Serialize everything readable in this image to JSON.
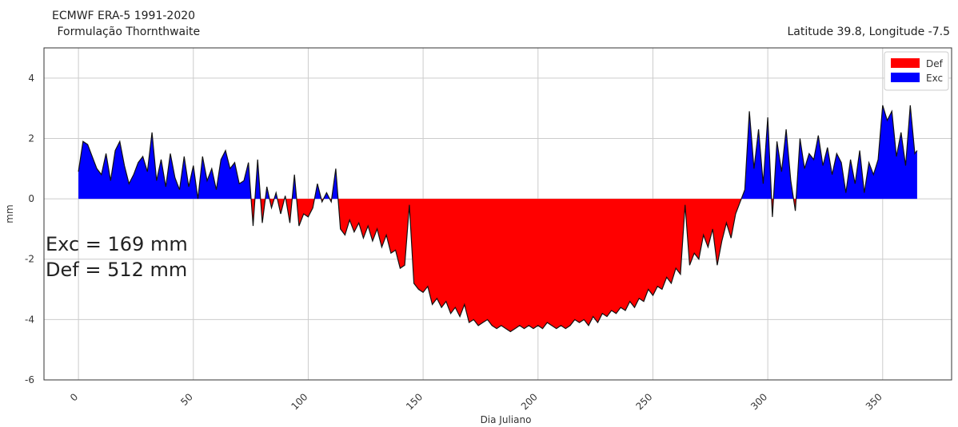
{
  "chart_data": {
    "type": "area",
    "title_line1": "ECMWF ERA-5 1991-2020",
    "title_line2": " Formulação Thornthwaite",
    "title_right": "Latitude 39.8, Longitude -7.5",
    "xlabel": "Dia Juliano",
    "ylabel": "mm",
    "xlim": [
      -15,
      380
    ],
    "ylim": [
      -6,
      5
    ],
    "xticks": [
      0,
      50,
      100,
      150,
      200,
      250,
      300,
      350
    ],
    "yticks": [
      -6,
      -4,
      -2,
      0,
      2,
      4
    ],
    "grid": true,
    "legend_position": "top-right",
    "annotations": [
      "Exc = 169 mm",
      "Def = 512 mm"
    ],
    "series": [
      {
        "name": "Def",
        "color": "#ff0000",
        "sign": "negative"
      },
      {
        "name": "Exc",
        "color": "#0000ff",
        "sign": "positive"
      }
    ],
    "points": [
      [
        0,
        0.9
      ],
      [
        2,
        1.9
      ],
      [
        4,
        1.8
      ],
      [
        6,
        1.4
      ],
      [
        8,
        1.0
      ],
      [
        10,
        0.8
      ],
      [
        12,
        1.5
      ],
      [
        14,
        0.6
      ],
      [
        16,
        1.6
      ],
      [
        18,
        1.9
      ],
      [
        20,
        1.1
      ],
      [
        22,
        0.5
      ],
      [
        24,
        0.8
      ],
      [
        26,
        1.2
      ],
      [
        28,
        1.4
      ],
      [
        30,
        0.9
      ],
      [
        32,
        2.2
      ],
      [
        34,
        0.6
      ],
      [
        36,
        1.3
      ],
      [
        38,
        0.4
      ],
      [
        40,
        1.5
      ],
      [
        42,
        0.7
      ],
      [
        44,
        0.3
      ],
      [
        46,
        1.4
      ],
      [
        48,
        0.4
      ],
      [
        50,
        1.1
      ],
      [
        52,
        0.0
      ],
      [
        54,
        1.4
      ],
      [
        56,
        0.6
      ],
      [
        58,
        1.0
      ],
      [
        60,
        0.3
      ],
      [
        62,
        1.3
      ],
      [
        64,
        1.6
      ],
      [
        66,
        1.0
      ],
      [
        68,
        1.2
      ],
      [
        70,
        0.5
      ],
      [
        72,
        0.6
      ],
      [
        74,
        1.2
      ],
      [
        76,
        -0.9
      ],
      [
        78,
        1.3
      ],
      [
        80,
        -0.8
      ],
      [
        82,
        0.4
      ],
      [
        84,
        -0.3
      ],
      [
        86,
        0.2
      ],
      [
        88,
        -0.5
      ],
      [
        90,
        0.1
      ],
      [
        92,
        -0.8
      ],
      [
        94,
        0.8
      ],
      [
        96,
        -0.9
      ],
      [
        98,
        -0.5
      ],
      [
        100,
        -0.6
      ],
      [
        102,
        -0.3
      ],
      [
        104,
        0.5
      ],
      [
        106,
        -0.1
      ],
      [
        108,
        0.2
      ],
      [
        110,
        -0.1
      ],
      [
        112,
        1.0
      ],
      [
        114,
        -1.0
      ],
      [
        116,
        -1.2
      ],
      [
        118,
        -0.7
      ],
      [
        120,
        -1.1
      ],
      [
        122,
        -0.8
      ],
      [
        124,
        -1.3
      ],
      [
        126,
        -0.9
      ],
      [
        128,
        -1.4
      ],
      [
        130,
        -1.0
      ],
      [
        132,
        -1.6
      ],
      [
        134,
        -1.2
      ],
      [
        136,
        -1.8
      ],
      [
        138,
        -1.7
      ],
      [
        140,
        -2.3
      ],
      [
        142,
        -2.2
      ],
      [
        144,
        -0.2
      ],
      [
        146,
        -2.8
      ],
      [
        148,
        -3.0
      ],
      [
        150,
        -3.1
      ],
      [
        152,
        -2.9
      ],
      [
        154,
        -3.5
      ],
      [
        156,
        -3.3
      ],
      [
        158,
        -3.6
      ],
      [
        160,
        -3.4
      ],
      [
        162,
        -3.8
      ],
      [
        164,
        -3.6
      ],
      [
        166,
        -3.9
      ],
      [
        168,
        -3.5
      ],
      [
        170,
        -4.1
      ],
      [
        172,
        -4.0
      ],
      [
        174,
        -4.2
      ],
      [
        176,
        -4.1
      ],
      [
        178,
        -4.0
      ],
      [
        180,
        -4.2
      ],
      [
        182,
        -4.3
      ],
      [
        184,
        -4.2
      ],
      [
        186,
        -4.3
      ],
      [
        188,
        -4.4
      ],
      [
        190,
        -4.3
      ],
      [
        192,
        -4.2
      ],
      [
        194,
        -4.3
      ],
      [
        196,
        -4.2
      ],
      [
        198,
        -4.3
      ],
      [
        200,
        -4.2
      ],
      [
        202,
        -4.3
      ],
      [
        204,
        -4.1
      ],
      [
        206,
        -4.2
      ],
      [
        208,
        -4.3
      ],
      [
        210,
        -4.2
      ],
      [
        212,
        -4.3
      ],
      [
        214,
        -4.2
      ],
      [
        216,
        -4.0
      ],
      [
        218,
        -4.1
      ],
      [
        220,
        -4.0
      ],
      [
        222,
        -4.2
      ],
      [
        224,
        -3.9
      ],
      [
        226,
        -4.1
      ],
      [
        228,
        -3.8
      ],
      [
        230,
        -3.9
      ],
      [
        232,
        -3.7
      ],
      [
        234,
        -3.8
      ],
      [
        236,
        -3.6
      ],
      [
        238,
        -3.7
      ],
      [
        240,
        -3.4
      ],
      [
        242,
        -3.6
      ],
      [
        244,
        -3.3
      ],
      [
        246,
        -3.4
      ],
      [
        248,
        -3.0
      ],
      [
        250,
        -3.2
      ],
      [
        252,
        -2.9
      ],
      [
        254,
        -3.0
      ],
      [
        256,
        -2.6
      ],
      [
        258,
        -2.8
      ],
      [
        260,
        -2.3
      ],
      [
        262,
        -2.5
      ],
      [
        264,
        -0.2
      ],
      [
        266,
        -2.2
      ],
      [
        268,
        -1.8
      ],
      [
        270,
        -2.0
      ],
      [
        272,
        -1.2
      ],
      [
        274,
        -1.6
      ],
      [
        276,
        -1.0
      ],
      [
        278,
        -2.2
      ],
      [
        280,
        -1.4
      ],
      [
        282,
        -0.8
      ],
      [
        284,
        -1.3
      ],
      [
        286,
        -0.5
      ],
      [
        288,
        -0.1
      ],
      [
        290,
        0.3
      ],
      [
        292,
        2.9
      ],
      [
        294,
        1.0
      ],
      [
        296,
        2.3
      ],
      [
        298,
        0.5
      ],
      [
        300,
        2.7
      ],
      [
        302,
        -0.6
      ],
      [
        304,
        1.9
      ],
      [
        306,
        0.9
      ],
      [
        308,
        2.3
      ],
      [
        310,
        0.6
      ],
      [
        312,
        -0.4
      ],
      [
        314,
        2.0
      ],
      [
        316,
        1.0
      ],
      [
        318,
        1.5
      ],
      [
        320,
        1.3
      ],
      [
        322,
        2.1
      ],
      [
        324,
        1.1
      ],
      [
        326,
        1.7
      ],
      [
        328,
        0.8
      ],
      [
        330,
        1.5
      ],
      [
        332,
        1.2
      ],
      [
        334,
        0.2
      ],
      [
        336,
        1.3
      ],
      [
        338,
        0.5
      ],
      [
        340,
        1.6
      ],
      [
        342,
        0.2
      ],
      [
        344,
        1.2
      ],
      [
        346,
        0.8
      ],
      [
        348,
        1.3
      ],
      [
        350,
        3.1
      ],
      [
        352,
        2.6
      ],
      [
        354,
        2.9
      ],
      [
        356,
        1.4
      ],
      [
        358,
        2.2
      ],
      [
        360,
        1.1
      ],
      [
        362,
        3.1
      ],
      [
        364,
        1.5
      ],
      [
        365,
        1.6
      ]
    ]
  }
}
